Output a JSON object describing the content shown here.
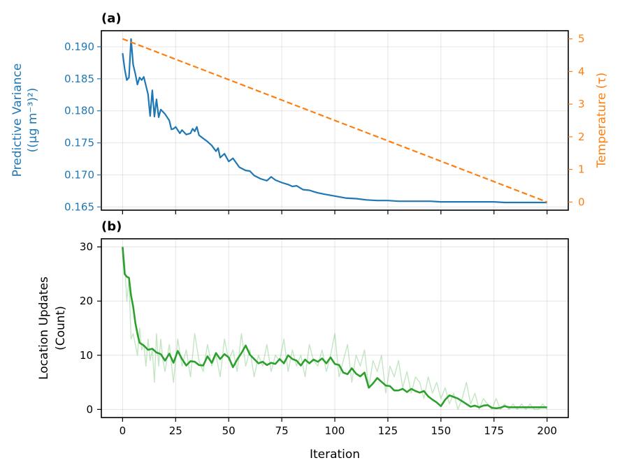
{
  "chart_data": [
    {
      "type": "line",
      "panel_label": "(a)",
      "xlim": [
        -10,
        210
      ],
      "xticks": [
        0,
        25,
        50,
        75,
        100,
        125,
        150,
        175,
        200
      ],
      "grid": true,
      "left_axis": {
        "label_line1": "Predictive Variance",
        "label_line2": "((μg m⁻³)²)",
        "color": "#1f77b4",
        "ylim": [
          0.1645,
          0.1925
        ],
        "ticks": [
          0.165,
          0.17,
          0.175,
          0.18,
          0.185,
          0.19
        ],
        "tick_labels": [
          "0.165",
          "0.170",
          "0.175",
          "0.180",
          "0.185",
          "0.190"
        ]
      },
      "right_axis": {
        "label": "Temperature (τ)",
        "color": "#ff7f0e",
        "ylim": [
          -0.25,
          5.25
        ],
        "ticks": [
          0,
          1,
          2,
          3,
          4,
          5
        ],
        "tick_labels": [
          "0",
          "1",
          "2",
          "3",
          "4",
          "5"
        ]
      },
      "series": [
        {
          "axis": "left",
          "color": "#1f77b4",
          "style": "solid",
          "x": [
            0,
            1,
            2,
            3,
            4,
            5,
            6,
            7,
            8,
            9,
            10,
            12,
            13,
            14,
            15,
            16,
            17,
            18,
            20,
            22,
            23,
            24,
            25,
            27,
            28,
            30,
            32,
            33,
            34,
            35,
            36,
            38,
            40,
            42,
            44,
            45,
            46,
            48,
            50,
            52,
            55,
            58,
            60,
            62,
            65,
            68,
            70,
            72,
            75,
            78,
            80,
            82,
            85,
            88,
            90,
            92,
            95,
            100,
            105,
            110,
            115,
            120,
            125,
            130,
            135,
            140,
            145,
            150,
            155,
            160,
            165,
            170,
            175,
            180,
            185,
            190,
            195,
            200
          ],
          "y": [
            0.189,
            0.1865,
            0.1848,
            0.1852,
            0.1912,
            0.1872,
            0.1858,
            0.1841,
            0.1852,
            0.1848,
            0.1853,
            0.1826,
            0.1792,
            0.1832,
            0.1791,
            0.1818,
            0.179,
            0.1802,
            0.1795,
            0.1785,
            0.1771,
            0.1772,
            0.1775,
            0.1765,
            0.177,
            0.1763,
            0.1765,
            0.1772,
            0.1768,
            0.1775,
            0.1762,
            0.1757,
            0.1752,
            0.1746,
            0.1737,
            0.1742,
            0.1727,
            0.1733,
            0.1721,
            0.1726,
            0.1712,
            0.1707,
            0.1706,
            0.1699,
            0.1694,
            0.1691,
            0.1697,
            0.1692,
            0.1688,
            0.1685,
            0.1682,
            0.1683,
            0.1677,
            0.1676,
            0.1674,
            0.1672,
            0.167,
            0.1667,
            0.1664,
            0.1663,
            0.1661,
            0.166,
            0.166,
            0.1659,
            0.1659,
            0.1659,
            0.1659,
            0.1658,
            0.1658,
            0.1658,
            0.1658,
            0.1658,
            0.1658,
            0.1657,
            0.1657,
            0.1657,
            0.1657,
            0.1657
          ]
        },
        {
          "axis": "right",
          "color": "#ff7f0e",
          "style": "dashed",
          "x": [
            0,
            200
          ],
          "y": [
            5,
            0
          ]
        }
      ]
    },
    {
      "type": "line",
      "panel_label": "(b)",
      "xlabel": "Iteration",
      "ylabel_line1": "Location Updates",
      "ylabel_line2": "(Count)",
      "xlim": [
        -10,
        210
      ],
      "xticks": [
        0,
        25,
        50,
        75,
        100,
        125,
        150,
        175,
        200
      ],
      "xtick_labels": [
        "0",
        "25",
        "50",
        "75",
        "100",
        "125",
        "150",
        "175",
        "200"
      ],
      "ylim": [
        -1.5,
        31.5
      ],
      "yticks": [
        0,
        10,
        20,
        30
      ],
      "ytick_labels": [
        "0",
        "10",
        "20",
        "30"
      ],
      "grid": true,
      "series": [
        {
          "kind": "raw",
          "color": "#2ca02c",
          "opacity": 0.28,
          "x": [
            0,
            1,
            2,
            3,
            4,
            5,
            6,
            7,
            8,
            9,
            10,
            11,
            12,
            13,
            14,
            15,
            16,
            17,
            18,
            19,
            20,
            22,
            24,
            26,
            28,
            30,
            32,
            34,
            36,
            38,
            40,
            42,
            44,
            46,
            48,
            50,
            52,
            54,
            56,
            58,
            60,
            62,
            64,
            66,
            68,
            70,
            72,
            74,
            76,
            78,
            80,
            82,
            84,
            86,
            88,
            90,
            92,
            94,
            96,
            98,
            100,
            102,
            104,
            106,
            108,
            110,
            112,
            114,
            116,
            118,
            120,
            122,
            124,
            126,
            128,
            130,
            132,
            134,
            136,
            138,
            140,
            142,
            144,
            146,
            148,
            150,
            152,
            154,
            156,
            158,
            160,
            162,
            164,
            166,
            168,
            170,
            172,
            174,
            176,
            178,
            180,
            182,
            184,
            186,
            188,
            190,
            192,
            194,
            196,
            198,
            200
          ],
          "y": [
            30,
            27,
            20,
            24,
            13,
            14,
            12,
            10,
            15,
            11,
            12,
            8,
            13,
            9,
            11,
            5,
            14,
            8,
            13,
            9,
            7,
            12,
            5,
            13,
            8,
            11,
            6,
            14,
            9,
            7,
            12,
            8,
            10,
            6,
            13,
            9,
            11,
            7,
            14,
            8,
            11,
            6,
            10,
            8,
            12,
            7,
            10,
            9,
            13,
            7,
            11,
            8,
            10,
            6,
            12,
            9,
            8,
            11,
            7,
            10,
            14,
            6,
            9,
            12,
            5,
            10,
            8,
            11,
            4,
            9,
            7,
            10,
            3,
            8,
            6,
            9,
            4,
            7,
            3,
            6,
            5,
            2,
            6,
            3,
            5,
            2,
            4,
            1,
            3,
            0,
            2,
            5,
            1,
            3,
            0,
            2,
            1,
            0,
            2,
            0,
            1,
            0,
            1,
            0,
            1,
            0,
            1,
            0,
            0,
            1,
            0
          ]
        },
        {
          "kind": "smoothed",
          "color": "#2ca02c",
          "opacity": 1,
          "x": [
            0,
            1,
            2,
            3,
            4,
            5,
            6,
            7,
            8,
            10,
            12,
            14,
            16,
            18,
            20,
            22,
            24,
            26,
            28,
            30,
            32,
            34,
            36,
            38,
            40,
            42,
            44,
            46,
            48,
            50,
            52,
            54,
            56,
            58,
            60,
            62,
            64,
            66,
            68,
            70,
            72,
            74,
            76,
            78,
            80,
            82,
            84,
            86,
            88,
            90,
            92,
            94,
            96,
            98,
            100,
            102,
            104,
            106,
            108,
            110,
            112,
            114,
            116,
            118,
            120,
            122,
            124,
            126,
            128,
            130,
            132,
            134,
            136,
            138,
            140,
            142,
            144,
            146,
            148,
            150,
            152,
            154,
            156,
            158,
            160,
            162,
            164,
            166,
            168,
            170,
            172,
            174,
            176,
            178,
            180,
            182,
            184,
            186,
            188,
            190,
            192,
            194,
            196,
            198,
            200
          ],
          "y": [
            30,
            25,
            24.5,
            24.3,
            21,
            19,
            16,
            14,
            12.3,
            11.8,
            11,
            11.2,
            10.5,
            10.2,
            9,
            10.3,
            8.6,
            10.8,
            9.3,
            8.1,
            8.9,
            8.8,
            8.2,
            8.1,
            9.8,
            8.6,
            10.4,
            9.3,
            10.2,
            9.6,
            7.8,
            9.2,
            10.4,
            11.8,
            10.1,
            9.3,
            8.5,
            8.8,
            8.2,
            8.6,
            8.4,
            9.3,
            8.5,
            10,
            9.3,
            9,
            8.1,
            9.2,
            8.5,
            9.2,
            8.8,
            9.4,
            8.5,
            9.6,
            8.4,
            8.2,
            6.8,
            6.5,
            7.6,
            6.6,
            6.1,
            6.8,
            4,
            4.8,
            5.8,
            5.1,
            4.4,
            4.3,
            3.5,
            3.5,
            3.8,
            3.2,
            3.8,
            3.4,
            3.1,
            3.4,
            2.4,
            1.8,
            1.3,
            0.6,
            1.8,
            2.6,
            2.3,
            2,
            1.5,
            1,
            0.5,
            0.7,
            0.4,
            0.7,
            0.8,
            0.3,
            0.2,
            0.3,
            0.6,
            0.4,
            0.4,
            0.4,
            0.4,
            0.4,
            0.4,
            0.4,
            0.4,
            0.4,
            0.4
          ]
        }
      ]
    }
  ]
}
